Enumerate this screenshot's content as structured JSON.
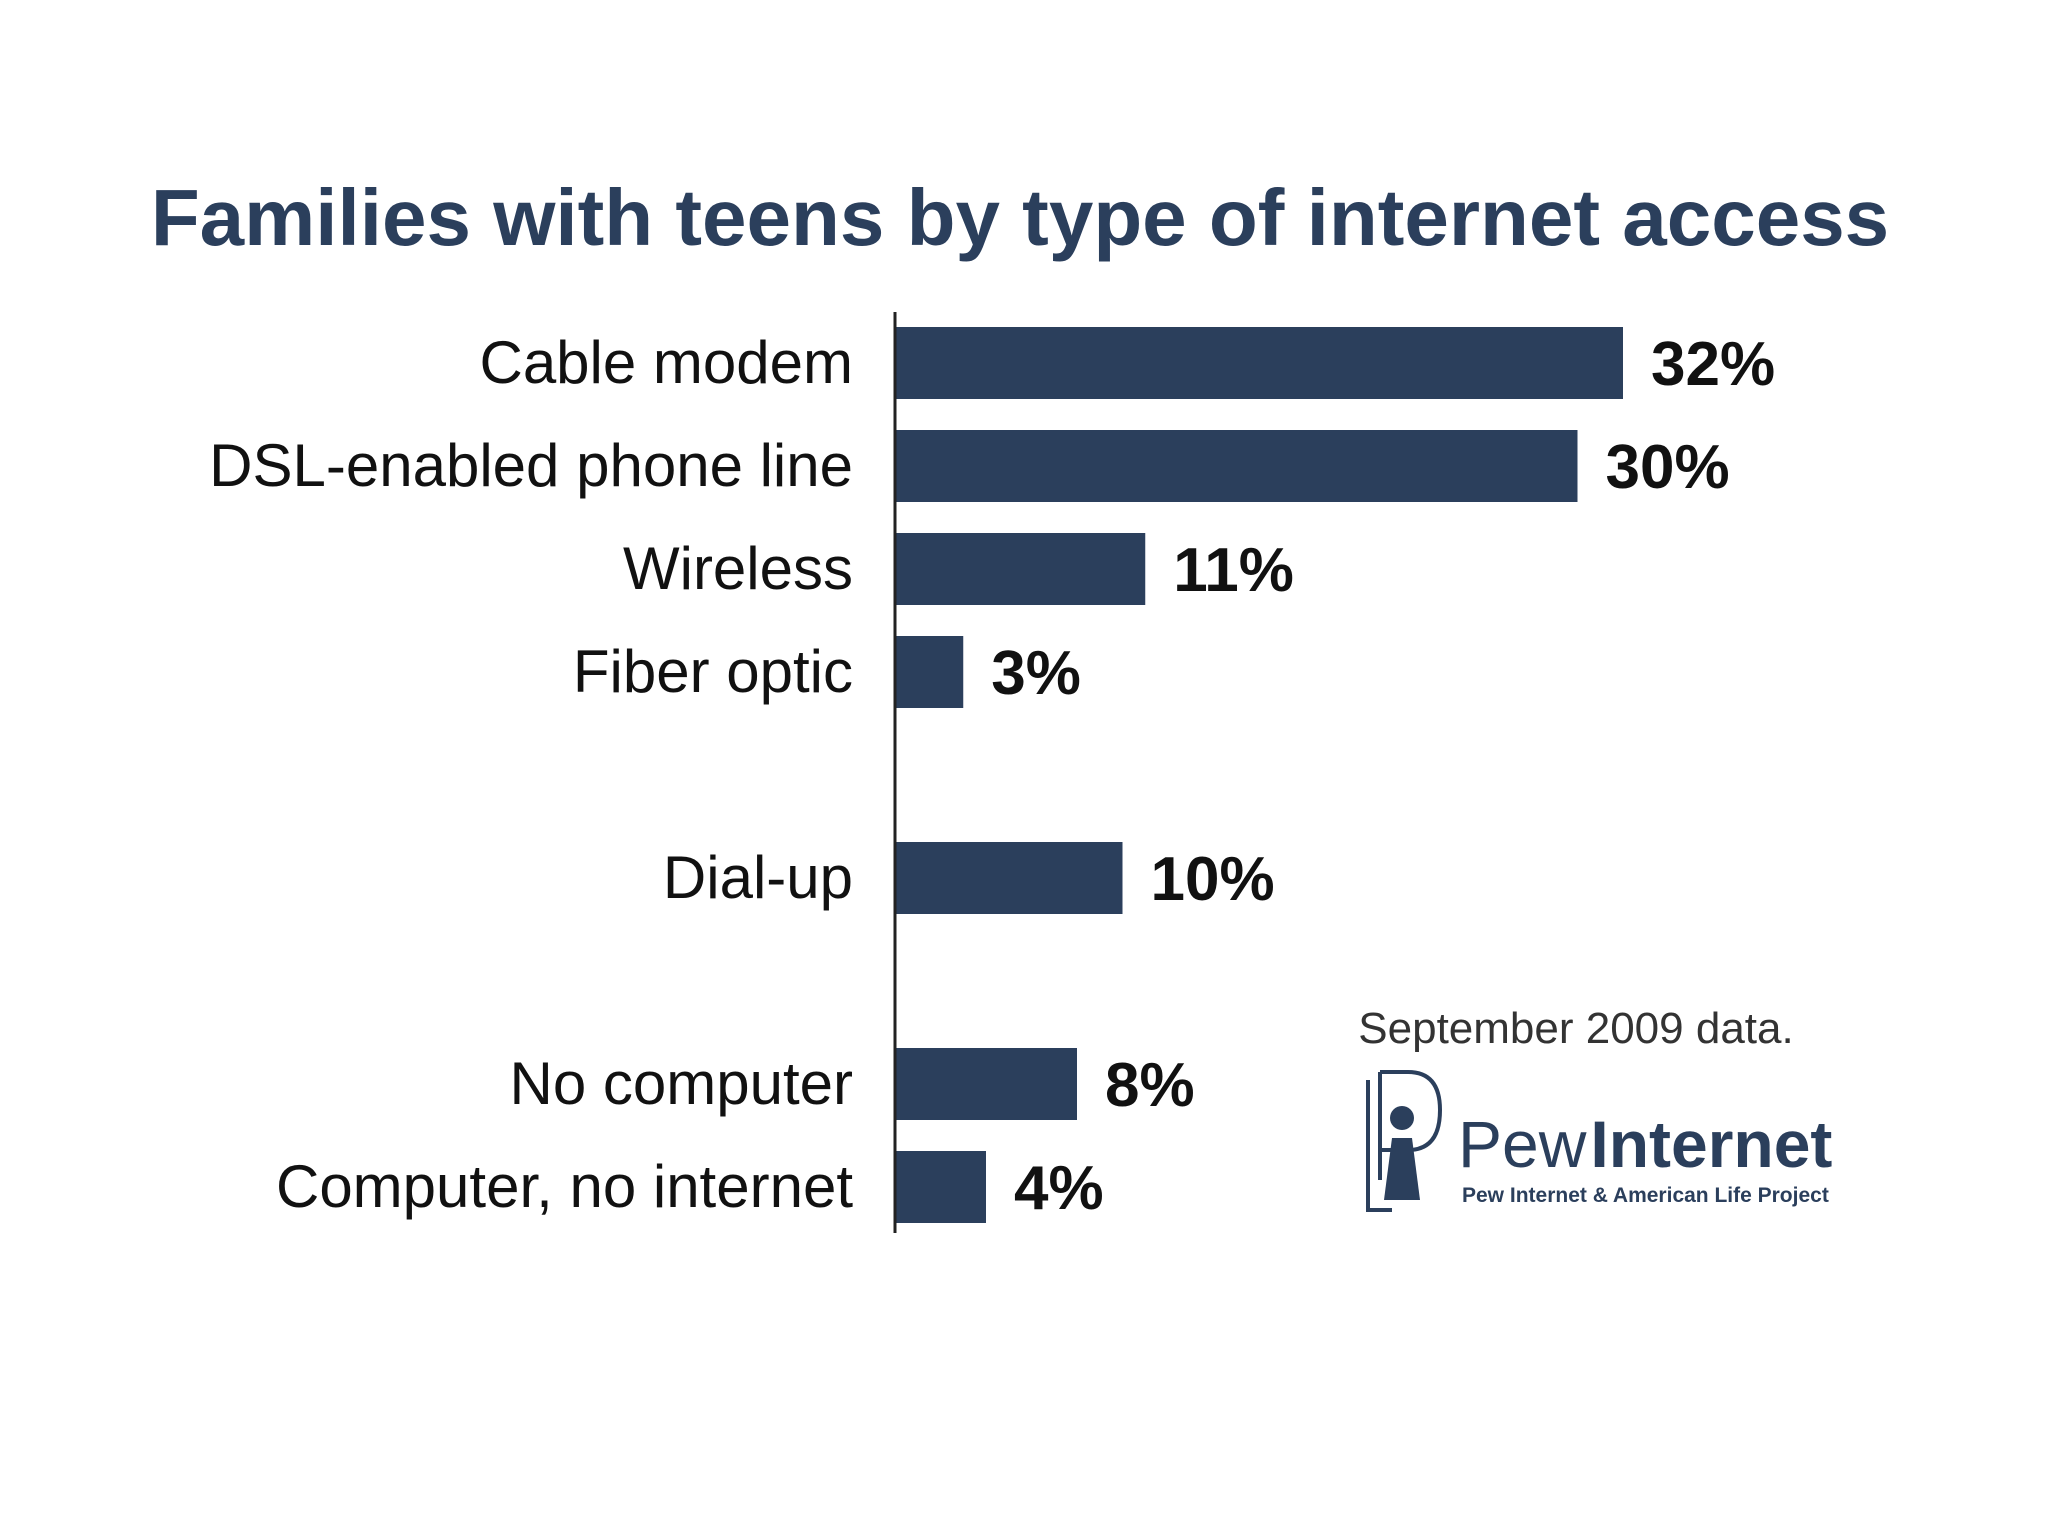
{
  "chart_data": {
    "type": "bar",
    "orientation": "horizontal",
    "title": "Families with teens by type of internet access",
    "categories": [
      "Cable modem",
      "DSL-enabled phone line",
      "Wireless",
      "Fiber optic",
      "Dial-up",
      "No computer",
      "Computer, no internet"
    ],
    "groups": [
      {
        "categories": [
          "Cable modem",
          "DSL-enabled phone line",
          "Wireless",
          "Fiber optic"
        ]
      },
      {
        "categories": [
          "Dial-up"
        ]
      },
      {
        "categories": [
          "No computer",
          "Computer, no internet"
        ]
      }
    ],
    "values": [
      32,
      30,
      11,
      3,
      10,
      8,
      4
    ],
    "value_labels": [
      "32%",
      "30%",
      "11%",
      "3%",
      "10%",
      "8%",
      "4%"
    ],
    "unit": "%",
    "xlim": [
      0,
      35
    ],
    "grid": false,
    "legend": "none",
    "bar_color": "#2b3f5c",
    "title_color": "#2b3f5c",
    "annotation": "September 2009 data."
  },
  "logo": {
    "name_part1": "Pew",
    "name_part2": "Internet",
    "tagline": "Pew Internet & American Life Project",
    "icon": "pew-logo-icon",
    "color": "#2b3f5c"
  }
}
